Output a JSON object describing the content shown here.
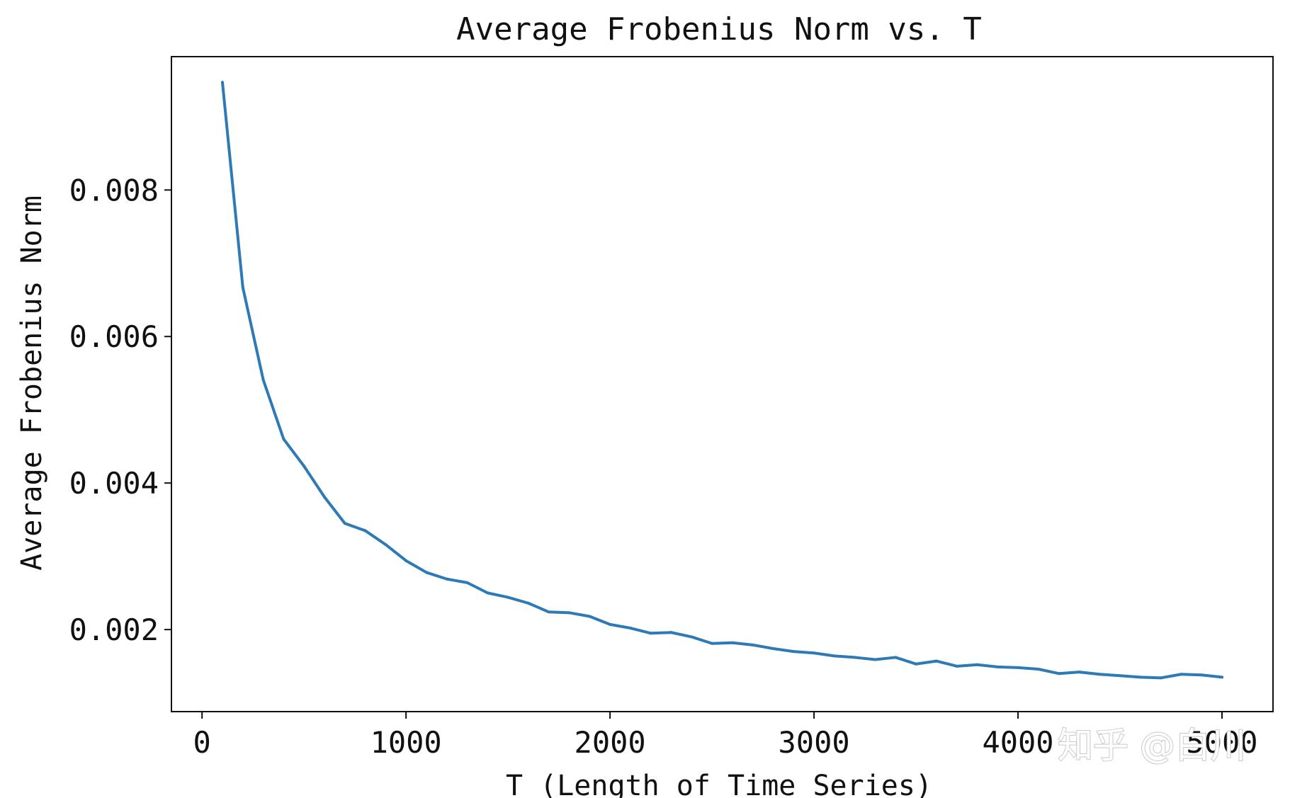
{
  "chart_data": {
    "type": "line",
    "title": "Average Frobenius Norm vs. T",
    "xlabel": "T (Length of Time Series)",
    "ylabel": "Average Frobenius Norm",
    "xlim": [
      -150,
      5250
    ],
    "ylim": [
      0.00088,
      0.00982
    ],
    "xticks": [
      0,
      1000,
      2000,
      3000,
      4000,
      5000
    ],
    "xtick_labels": [
      "0",
      "1000",
      "2000",
      "3000",
      "4000",
      "5000"
    ],
    "yticks": [
      0.002,
      0.004,
      0.006,
      0.008
    ],
    "ytick_labels": [
      "0.002",
      "0.004",
      "0.006",
      "0.008"
    ],
    "grid": false,
    "legend": "none",
    "series": [
      {
        "color": "#2e7ab6",
        "x": [
          100,
          200,
          300,
          400,
          500,
          600,
          700,
          800,
          900,
          1000,
          1100,
          1200,
          1300,
          1400,
          1500,
          1600,
          1700,
          1800,
          1900,
          2000,
          2100,
          2200,
          2300,
          2400,
          2500,
          2600,
          2700,
          2800,
          2900,
          3000,
          3100,
          3200,
          3300,
          3400,
          3500,
          3600,
          3700,
          3800,
          3900,
          4000,
          4100,
          4200,
          4300,
          4400,
          4500,
          4600,
          4700,
          4800,
          4900,
          5000
        ],
        "values": [
          0.00947,
          0.00667,
          0.00541,
          0.0046,
          0.00423,
          0.00381,
          0.00345,
          0.00335,
          0.00316,
          0.00294,
          0.00278,
          0.00269,
          0.00264,
          0.0025,
          0.00244,
          0.00236,
          0.00224,
          0.00223,
          0.00218,
          0.00207,
          0.00202,
          0.00195,
          0.00196,
          0.0019,
          0.00181,
          0.00182,
          0.00179,
          0.00174,
          0.0017,
          0.00168,
          0.00164,
          0.00162,
          0.00159,
          0.00162,
          0.00153,
          0.00157,
          0.0015,
          0.00152,
          0.00149,
          0.00148,
          0.00146,
          0.0014,
          0.00142,
          0.00139,
          0.00137,
          0.00135,
          0.00134,
          0.00139,
          0.00138,
          0.00135
        ]
      }
    ]
  },
  "watermark": "知乎 @白川"
}
